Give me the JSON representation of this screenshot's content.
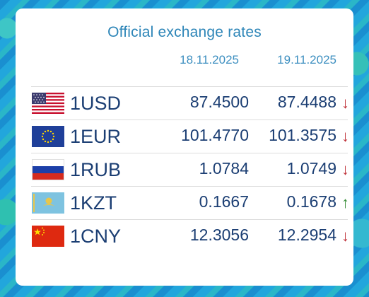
{
  "title": "Official exchange rates",
  "dates": [
    "18.11.2025",
    "19.11.2025"
  ],
  "rows": [
    {
      "currency": "1USD",
      "rate1": "87.4500",
      "rate2": "87.4488",
      "trend": "↓",
      "flag": "usa-flag-icon"
    },
    {
      "currency": "1EUR",
      "rate1": "101.4770",
      "rate2": "101.3575",
      "trend": "↓",
      "flag": "eu-flag-icon"
    },
    {
      "currency": "1RUB",
      "rate1": "1.0784",
      "rate2": "1.0749",
      "trend": "↓",
      "flag": "russia-flag-icon"
    },
    {
      "currency": "1KZT",
      "rate1": "0.1667",
      "rate2": "0.1678",
      "trend": "↑",
      "flag": "kazakhstan-flag-icon"
    },
    {
      "currency": "1CNY",
      "rate1": "12.3056",
      "rate2": "12.2954",
      "trend": "↓",
      "flag": "china-flag-icon"
    }
  ],
  "colors": {
    "down": "#c0323a",
    "up": "#3a8f3a",
    "text": "#1b3e73",
    "title": "#2e86b8"
  }
}
